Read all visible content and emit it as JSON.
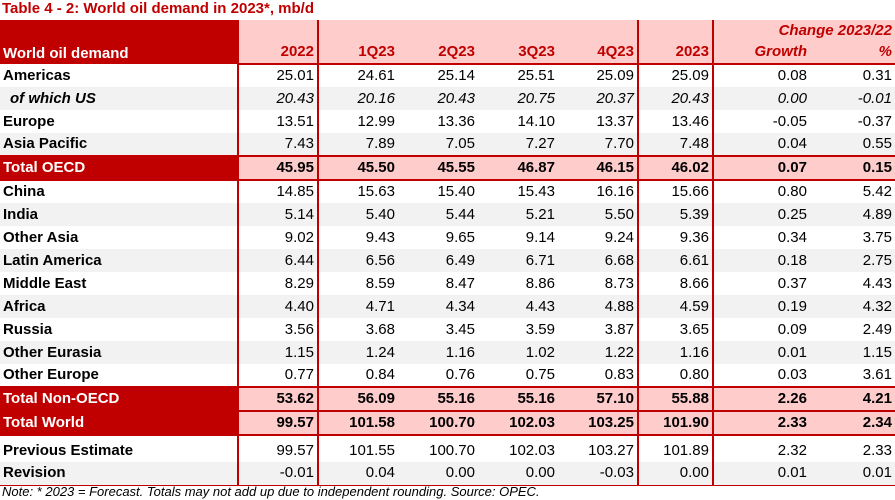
{
  "title": "Table 4 - 2: World oil demand in 2023*, mb/d",
  "header": {
    "label": "World oil demand",
    "change_group": "Change 2023/22",
    "columns": [
      "2022",
      "1Q23",
      "2Q23",
      "3Q23",
      "4Q23",
      "2023",
      "Growth",
      "%"
    ]
  },
  "rows": [
    {
      "label": "Americas",
      "values": [
        "25.01",
        "24.61",
        "25.14",
        "25.51",
        "25.09",
        "25.09",
        "0.08",
        "0.31"
      ]
    },
    {
      "label": "of which US",
      "values": [
        "20.43",
        "20.16",
        "20.43",
        "20.75",
        "20.37",
        "20.43",
        "0.00",
        "-0.01"
      ]
    },
    {
      "label": "Europe",
      "values": [
        "13.51",
        "12.99",
        "13.36",
        "14.10",
        "13.37",
        "13.46",
        "-0.05",
        "-0.37"
      ]
    },
    {
      "label": "Asia Pacific",
      "values": [
        "7.43",
        "7.89",
        "7.05",
        "7.27",
        "7.70",
        "7.48",
        "0.04",
        "0.55"
      ]
    },
    {
      "label": "Total OECD",
      "values": [
        "45.95",
        "45.50",
        "45.55",
        "46.87",
        "46.15",
        "46.02",
        "0.07",
        "0.15"
      ]
    },
    {
      "label": "China",
      "values": [
        "14.85",
        "15.63",
        "15.40",
        "15.43",
        "16.16",
        "15.66",
        "0.80",
        "5.42"
      ]
    },
    {
      "label": "India",
      "values": [
        "5.14",
        "5.40",
        "5.44",
        "5.21",
        "5.50",
        "5.39",
        "0.25",
        "4.89"
      ]
    },
    {
      "label": "Other Asia",
      "values": [
        "9.02",
        "9.43",
        "9.65",
        "9.14",
        "9.24",
        "9.36",
        "0.34",
        "3.75"
      ]
    },
    {
      "label": "Latin America",
      "values": [
        "6.44",
        "6.56",
        "6.49",
        "6.71",
        "6.68",
        "6.61",
        "0.18",
        "2.75"
      ]
    },
    {
      "label": "Middle East",
      "values": [
        "8.29",
        "8.59",
        "8.47",
        "8.86",
        "8.73",
        "8.66",
        "0.37",
        "4.43"
      ]
    },
    {
      "label": "Africa",
      "values": [
        "4.40",
        "4.71",
        "4.34",
        "4.43",
        "4.88",
        "4.59",
        "0.19",
        "4.32"
      ]
    },
    {
      "label": "Russia",
      "values": [
        "3.56",
        "3.68",
        "3.45",
        "3.59",
        "3.87",
        "3.65",
        "0.09",
        "2.49"
      ]
    },
    {
      "label": "Other Eurasia",
      "values": [
        "1.15",
        "1.24",
        "1.16",
        "1.02",
        "1.22",
        "1.16",
        "0.01",
        "1.15"
      ]
    },
    {
      "label": "Other Europe",
      "values": [
        "0.77",
        "0.84",
        "0.76",
        "0.75",
        "0.83",
        "0.80",
        "0.03",
        "3.61"
      ]
    },
    {
      "label": "Total Non-OECD",
      "values": [
        "53.62",
        "56.09",
        "55.16",
        "55.16",
        "57.10",
        "55.88",
        "2.26",
        "4.21"
      ]
    },
    {
      "label": "Total World",
      "values": [
        "99.57",
        "101.58",
        "100.70",
        "102.03",
        "103.25",
        "101.90",
        "2.33",
        "2.34"
      ]
    },
    {
      "label": "Previous Estimate",
      "values": [
        "99.57",
        "101.55",
        "100.70",
        "102.03",
        "103.27",
        "101.89",
        "2.32",
        "2.33"
      ]
    },
    {
      "label": "Revision",
      "values": [
        "-0.01",
        "0.04",
        "0.00",
        "0.00",
        "-0.03",
        "0.00",
        "0.01",
        "0.01"
      ]
    }
  ],
  "note": "Note: * 2023 = Forecast. Totals may not add up due to independent rounding. Source: OPEC.",
  "colors": {
    "accent": "#c00000",
    "header_fill": "#ffcccc",
    "alt_row": "#f2f2f2"
  }
}
